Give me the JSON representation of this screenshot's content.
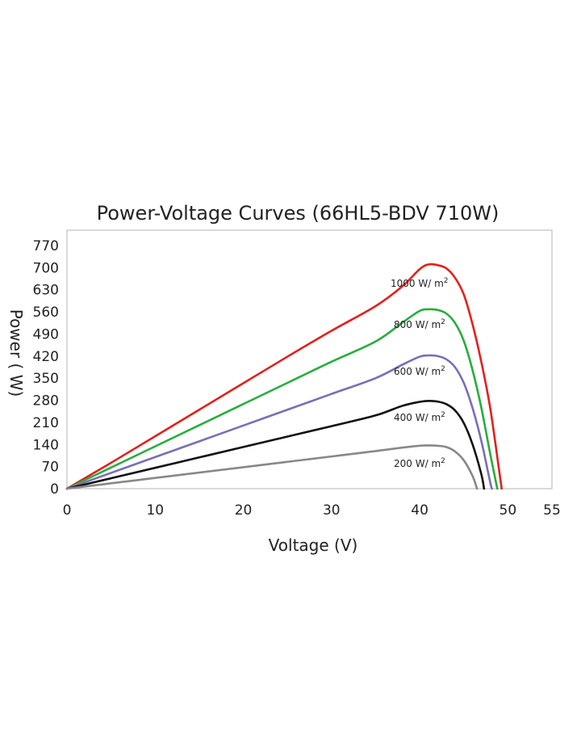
{
  "chart_data": {
    "type": "line",
    "title": "Power-Voltage Curves (66HL5-BDV 710W)",
    "xlabel": "Voltage (V)",
    "ylabel": "Power ( W)",
    "xlim": [
      0,
      55
    ],
    "ylim": [
      0,
      780
    ],
    "xticks": [
      "0",
      "10",
      "20",
      "30",
      "40",
      "50",
      "55"
    ],
    "yticks": [
      "0",
      "70",
      "140",
      "210",
      "280",
      "350",
      "420",
      "490",
      "560",
      "630",
      "700",
      "770"
    ],
    "grid": false,
    "series": [
      {
        "name": "1000 W/ m²",
        "label_text": "1000 W/ m",
        "label_sup": "2",
        "color": "#e2201c",
        "points": [
          [
            0,
            0
          ],
          [
            5,
            82
          ],
          [
            10,
            166
          ],
          [
            15,
            250
          ],
          [
            20,
            334
          ],
          [
            25,
            418
          ],
          [
            30,
            500
          ],
          [
            35,
            578
          ],
          [
            38,
            640
          ],
          [
            40,
            695
          ],
          [
            41,
            710
          ],
          [
            42,
            708
          ],
          [
            43,
            698
          ],
          [
            44,
            668
          ],
          [
            45,
            615
          ],
          [
            46,
            520
          ],
          [
            47,
            400
          ],
          [
            48,
            255
          ],
          [
            49,
            60
          ],
          [
            49.3,
            0
          ]
        ]
      },
      {
        "name": "800 W/ m²",
        "label_text": "800 W/ m",
        "label_sup": "2",
        "color": "#27ad3e",
        "points": [
          [
            0,
            0
          ],
          [
            5,
            67
          ],
          [
            10,
            134
          ],
          [
            15,
            201
          ],
          [
            20,
            268
          ],
          [
            25,
            335
          ],
          [
            30,
            402
          ],
          [
            35,
            466
          ],
          [
            38,
            525
          ],
          [
            40,
            563
          ],
          [
            41,
            568
          ],
          [
            42,
            566
          ],
          [
            43,
            555
          ],
          [
            44,
            525
          ],
          [
            45,
            468
          ],
          [
            46,
            375
          ],
          [
            47,
            255
          ],
          [
            48,
            110
          ],
          [
            48.8,
            0
          ]
        ]
      },
      {
        "name": "600 W/ m²",
        "label_text": "600 W/ m",
        "label_sup": "2",
        "color": "#7a6eb8",
        "points": [
          [
            0,
            0
          ],
          [
            5,
            50
          ],
          [
            10,
            100
          ],
          [
            15,
            150
          ],
          [
            20,
            200
          ],
          [
            25,
            250
          ],
          [
            30,
            300
          ],
          [
            35,
            350
          ],
          [
            38,
            392
          ],
          [
            40,
            418
          ],
          [
            41,
            422
          ],
          [
            42,
            420
          ],
          [
            43,
            410
          ],
          [
            44,
            385
          ],
          [
            45,
            335
          ],
          [
            46,
            255
          ],
          [
            47,
            150
          ],
          [
            48,
            20
          ],
          [
            48.2,
            0
          ]
        ]
      },
      {
        "name": "400 W/ m²",
        "label_text": "400 W/ m",
        "label_sup": "2",
        "color": "#111111",
        "points": [
          [
            0,
            0
          ],
          [
            5,
            33
          ],
          [
            10,
            66
          ],
          [
            15,
            99
          ],
          [
            20,
            132
          ],
          [
            25,
            165
          ],
          [
            30,
            198
          ],
          [
            35,
            232
          ],
          [
            38,
            262
          ],
          [
            40,
            275
          ],
          [
            41,
            278
          ],
          [
            42,
            276
          ],
          [
            43,
            268
          ],
          [
            44,
            248
          ],
          [
            45,
            208
          ],
          [
            46,
            140
          ],
          [
            47,
            45
          ],
          [
            47.3,
            0
          ]
        ]
      },
      {
        "name": "200 W/ m²",
        "label_text": "200 W/ m",
        "label_sup": "2",
        "color": "#888888",
        "points": [
          [
            0,
            0
          ],
          [
            5,
            17
          ],
          [
            10,
            34
          ],
          [
            15,
            51
          ],
          [
            20,
            68
          ],
          [
            25,
            85
          ],
          [
            30,
            102
          ],
          [
            35,
            119
          ],
          [
            38,
            130
          ],
          [
            40,
            136
          ],
          [
            41,
            137
          ],
          [
            42,
            136
          ],
          [
            43,
            132
          ],
          [
            44,
            118
          ],
          [
            45,
            90
          ],
          [
            46,
            40
          ],
          [
            46.5,
            0
          ]
        ]
      }
    ]
  }
}
